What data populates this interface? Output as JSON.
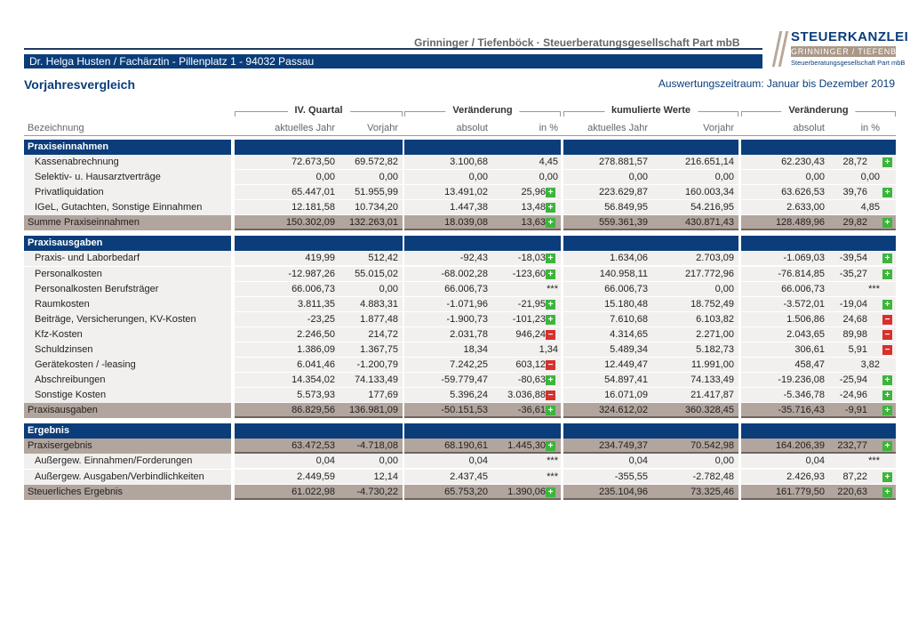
{
  "header": {
    "firm": "Grinninger / Tiefenböck · Steuerberatungsgesellschaft Part mbB",
    "address": "Dr. Helga Husten / Fachärztin  -  Pillenplatz 1  -  94032 Passau",
    "logo_line1": "STEUERKANZLEI",
    "logo_line2": "GRINNINGER / TIEFENBÖCK",
    "logo_line3": "Steuerberatungsgesellschaft Part mbB"
  },
  "report": {
    "title": "Vorjahresvergleich",
    "period": "Auswertungszeitraum: Januar bis Dezember 2019"
  },
  "columns": {
    "groups": [
      "IV. Quartal",
      "Veränderung",
      "kumulierte Werte",
      "Veränderung"
    ],
    "label": "Bezeichnung",
    "sub": [
      "aktuelles Jahr",
      "Vorjahr",
      "absolut",
      "in %",
      "aktuelles Jahr",
      "Vorjahr",
      "absolut",
      "in %"
    ]
  },
  "rows": [
    {
      "type": "sec",
      "label": "Praxiseinnahmen"
    },
    {
      "type": "item",
      "label": "Kassenabrechnung",
      "v": [
        "72.673,50",
        "69.572,82",
        "3.100,68",
        "4,45",
        "278.881,57",
        "216.651,14",
        "62.230,43",
        "28,72"
      ],
      "i": [
        "",
        "",
        "",
        "",
        "",
        "",
        "",
        "plus"
      ]
    },
    {
      "type": "item",
      "label": "Selektiv- u. Hausarztverträge",
      "v": [
        "0,00",
        "0,00",
        "0,00",
        "0,00",
        "0,00",
        "0,00",
        "0,00",
        "0,00"
      ],
      "i": [
        "",
        "",
        "",
        "",
        "",
        "",
        "",
        ""
      ]
    },
    {
      "type": "item",
      "label": "Privatliquidation",
      "v": [
        "65.447,01",
        "51.955,99",
        "13.491,02",
        "25,96",
        "223.629,87",
        "160.003,34",
        "63.626,53",
        "39,76"
      ],
      "i": [
        "",
        "",
        "",
        "plus",
        "",
        "",
        "",
        "plus"
      ]
    },
    {
      "type": "item",
      "label": "IGeL, Gutachten, Sonstige Einnahmen",
      "v": [
        "12.181,58",
        "10.734,20",
        "1.447,38",
        "13,48",
        "56.849,95",
        "54.216,95",
        "2.633,00",
        "4,85"
      ],
      "i": [
        "",
        "",
        "",
        "plus",
        "",
        "",
        "",
        ""
      ]
    },
    {
      "type": "sum",
      "label": "Summe Praxiseinnahmen",
      "v": [
        "150.302,09",
        "132.263,01",
        "18.039,08",
        "13,63",
        "559.361,39",
        "430.871,43",
        "128.489,96",
        "29,82"
      ],
      "i": [
        "",
        "",
        "",
        "plus",
        "",
        "",
        "",
        "plus"
      ]
    },
    {
      "type": "gap"
    },
    {
      "type": "sec",
      "label": "Praxisausgaben"
    },
    {
      "type": "item",
      "label": "Praxis- und Laborbedarf",
      "v": [
        "419,99",
        "512,42",
        "-92,43",
        "-18,03",
        "1.634,06",
        "2.703,09",
        "-1.069,03",
        "-39,54"
      ],
      "i": [
        "",
        "",
        "",
        "plus",
        "",
        "",
        "",
        "plus"
      ]
    },
    {
      "type": "item",
      "label": "Personalkosten",
      "v": [
        "-12.987,26",
        "55.015,02",
        "-68.002,28",
        "-123,60",
        "140.958,11",
        "217.772,96",
        "-76.814,85",
        "-35,27"
      ],
      "i": [
        "",
        "",
        "",
        "plus",
        "",
        "",
        "",
        "plus"
      ]
    },
    {
      "type": "item",
      "label": "Personalkosten Berufsträger",
      "v": [
        "66.006,73",
        "0,00",
        "66.006,73",
        "***",
        "66.006,73",
        "0,00",
        "66.006,73",
        "***"
      ],
      "i": [
        "",
        "",
        "",
        "",
        "",
        "",
        "",
        ""
      ]
    },
    {
      "type": "item",
      "label": "Raumkosten",
      "v": [
        "3.811,35",
        "4.883,31",
        "-1.071,96",
        "-21,95",
        "15.180,48",
        "18.752,49",
        "-3.572,01",
        "-19,04"
      ],
      "i": [
        "",
        "",
        "",
        "plus",
        "",
        "",
        "",
        "plus"
      ]
    },
    {
      "type": "item",
      "label": "Beiträge, Versicherungen, KV-Kosten",
      "v": [
        "-23,25",
        "1.877,48",
        "-1.900,73",
        "-101,23",
        "7.610,68",
        "6.103,82",
        "1.506,86",
        "24,68"
      ],
      "i": [
        "",
        "",
        "",
        "plus",
        "",
        "",
        "",
        "minus"
      ]
    },
    {
      "type": "item",
      "label": "Kfz-Kosten",
      "v": [
        "2.246,50",
        "214,72",
        "2.031,78",
        "946,24",
        "4.314,65",
        "2.271,00",
        "2.043,65",
        "89,98"
      ],
      "i": [
        "",
        "",
        "",
        "minus",
        "",
        "",
        "",
        "minus"
      ]
    },
    {
      "type": "item",
      "label": "Schuldzinsen",
      "v": [
        "1.386,09",
        "1.367,75",
        "18,34",
        "1,34",
        "5.489,34",
        "5.182,73",
        "306,61",
        "5,91"
      ],
      "i": [
        "",
        "",
        "",
        "",
        "",
        "",
        "",
        "minus"
      ]
    },
    {
      "type": "item",
      "label": "Gerätekosten / -leasing",
      "v": [
        "6.041,46",
        "-1.200,79",
        "7.242,25",
        "603,12",
        "12.449,47",
        "11.991,00",
        "458,47",
        "3,82"
      ],
      "i": [
        "",
        "",
        "",
        "minus",
        "",
        "",
        "",
        ""
      ]
    },
    {
      "type": "item",
      "label": "Abschreibungen",
      "v": [
        "14.354,02",
        "74.133,49",
        "-59.779,47",
        "-80,63",
        "54.897,41",
        "74.133,49",
        "-19.236,08",
        "-25,94"
      ],
      "i": [
        "",
        "",
        "",
        "plus",
        "",
        "",
        "",
        "plus"
      ]
    },
    {
      "type": "item",
      "label": "Sonstige Kosten",
      "v": [
        "5.573,93",
        "177,69",
        "5.396,24",
        "3.036,88",
        "16.071,09",
        "21.417,87",
        "-5.346,78",
        "-24,96"
      ],
      "i": [
        "",
        "",
        "",
        "minus",
        "",
        "",
        "",
        "plus"
      ]
    },
    {
      "type": "sum",
      "label": "Praxisausgaben",
      "v": [
        "86.829,56",
        "136.981,09",
        "-50.151,53",
        "-36,61",
        "324.612,02",
        "360.328,45",
        "-35.716,43",
        "-9,91"
      ],
      "i": [
        "",
        "",
        "",
        "plus",
        "",
        "",
        "",
        "plus"
      ]
    },
    {
      "type": "gap"
    },
    {
      "type": "sec",
      "label": "Ergebnis"
    },
    {
      "type": "sum",
      "label": "Praxisergebnis",
      "v": [
        "63.472,53",
        "-4.718,08",
        "68.190,61",
        "1.445,30",
        "234.749,37",
        "70.542,98",
        "164.206,39",
        "232,77"
      ],
      "i": [
        "",
        "",
        "",
        "plus",
        "",
        "",
        "",
        "plus"
      ]
    },
    {
      "type": "item",
      "label": "Außergew. Einnahmen/Forderungen",
      "v": [
        "0,04",
        "0,00",
        "0,04",
        "***",
        "0,04",
        "0,00",
        "0,04",
        "***"
      ],
      "i": [
        "",
        "",
        "",
        "",
        "",
        "",
        "",
        ""
      ]
    },
    {
      "type": "item",
      "label": "Außergew. Ausgaben/Verbindlichkeiten",
      "v": [
        "2.449,59",
        "12,14",
        "2.437,45",
        "***",
        "-355,55",
        "-2.782,48",
        "2.426,93",
        "87,22"
      ],
      "i": [
        "",
        "",
        "",
        "",
        "",
        "",
        "",
        "plus"
      ]
    },
    {
      "type": "sum",
      "label": "Steuerliches Ergebnis",
      "v": [
        "61.022,98",
        "-4.730,22",
        "65.753,20",
        "1.390,06",
        "235.104,96",
        "73.325,46",
        "161.779,50",
        "220,63"
      ],
      "i": [
        "",
        "",
        "",
        "plus",
        "",
        "",
        "",
        "plus"
      ]
    }
  ]
}
